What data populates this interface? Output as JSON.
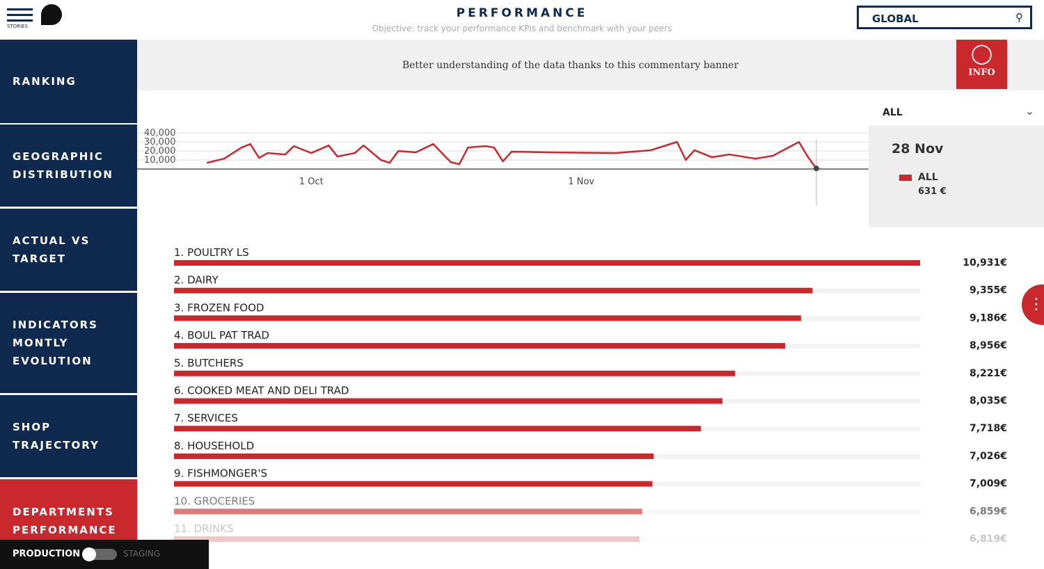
{
  "header": {
    "menu_label": "STORIES",
    "title": "PERFORMANCE",
    "subtitle": "Objective: track your performance KPIs and benchmark with your peers",
    "search": "GLOBAL"
  },
  "sidebar": {
    "items": [
      {
        "lines": [
          "RANKING"
        ]
      },
      {
        "lines": [
          "GEOGRAPHIC",
          "DISTRIBUTION"
        ]
      },
      {
        "lines": [
          "ACTUAL VS",
          "TARGET"
        ]
      },
      {
        "lines": [
          "INDICATORS",
          "MONTLY",
          "EVOLUTION"
        ]
      },
      {
        "lines": [
          "SHOP",
          "TRAJECTORY"
        ]
      },
      {
        "lines": [
          "DEPARTMENTS",
          "PERFORMANCE"
        ]
      }
    ]
  },
  "banner": {
    "text": "Better understanding of the data thanks to this commentary banner",
    "button": "INFO"
  },
  "selector": "ALL",
  "tooltip": {
    "date": "28 Nov",
    "value": "631 €"
  },
  "footer": {
    "left": "PRODUCTION",
    "right": "STAGING"
  },
  "chart_data": [
    {
      "type": "line",
      "x": [
        "19 Sep",
        "21 Sep",
        "23 Sep",
        "24 Sep",
        "25 Sep",
        "26 Sep",
        "28 Sep",
        "29 Sep",
        "1 Oct",
        "3 Oct",
        "4 Oct",
        "6 Oct",
        "7 Oct",
        "9 Oct",
        "10 Oct",
        "11 Oct",
        "13 Oct",
        "15 Oct",
        "17 Oct",
        "18 Oct",
        "19 Oct",
        "21 Oct",
        "22 Oct",
        "23 Oct",
        "24 Oct",
        "28 Oct",
        "5 Nov",
        "9 Nov",
        "12 Nov",
        "13 Nov",
        "14 Nov",
        "16 Nov",
        "18 Nov",
        "21 Nov",
        "23 Nov",
        "26 Nov",
        "27 Nov",
        "28 Nov"
      ],
      "series": [
        {
          "name": "ALL",
          "color": "#c9282d",
          "values": [
            6900,
            11500,
            23800,
            27700,
            12300,
            17700,
            16100,
            25400,
            17700,
            26100,
            13800,
            17700,
            26100,
            10000,
            6900,
            20000,
            18500,
            27700,
            7700,
            5400,
            23800,
            25400,
            23800,
            8500,
            19200,
            18500,
            17700,
            20800,
            30000,
            10000,
            20800,
            13100,
            16100,
            11500,
            14600,
            30000,
            13800,
            631
          ]
        }
      ],
      "xlim": [
        "11 Sep",
        "4 Dec"
      ],
      "xticks": [
        "1 Oct",
        "1 Nov"
      ],
      "ylim": [
        0,
        40000
      ],
      "yticks": [
        {
          "value": 10000,
          "label": "10,000"
        },
        {
          "value": 20000,
          "label": "20,000"
        },
        {
          "value": 30000,
          "label": "30,000"
        },
        {
          "value": 40000,
          "label": "40,000"
        }
      ],
      "grid": true
    },
    {
      "type": "hbar",
      "categories": [
        "1. POULTRY LS",
        "2. DAIRY",
        "3. FROZEN FOOD",
        "4. BOUL PAT TRAD",
        "5. BUTCHERS",
        "6. COOKED MEAT AND DELI TRAD",
        "7. SERVICES",
        "8. HOUSEHOLD",
        "9. FISHMONGER'S",
        "10. GROCERIES",
        "11. DRINKS"
      ],
      "values": [
        10931,
        9355,
        9186,
        8956,
        8221,
        8035,
        7718,
        7026,
        7009,
        6859,
        6819
      ],
      "value_labels": [
        "10,931€",
        "9,355€",
        "9,186€",
        "8,956€",
        "8,221€",
        "8,035€",
        "7,718€",
        "7,026€",
        "7,009€",
        "6,859€",
        "6,819€"
      ],
      "color": "#c9282d",
      "xlim": [
        0,
        10931
      ]
    }
  ]
}
